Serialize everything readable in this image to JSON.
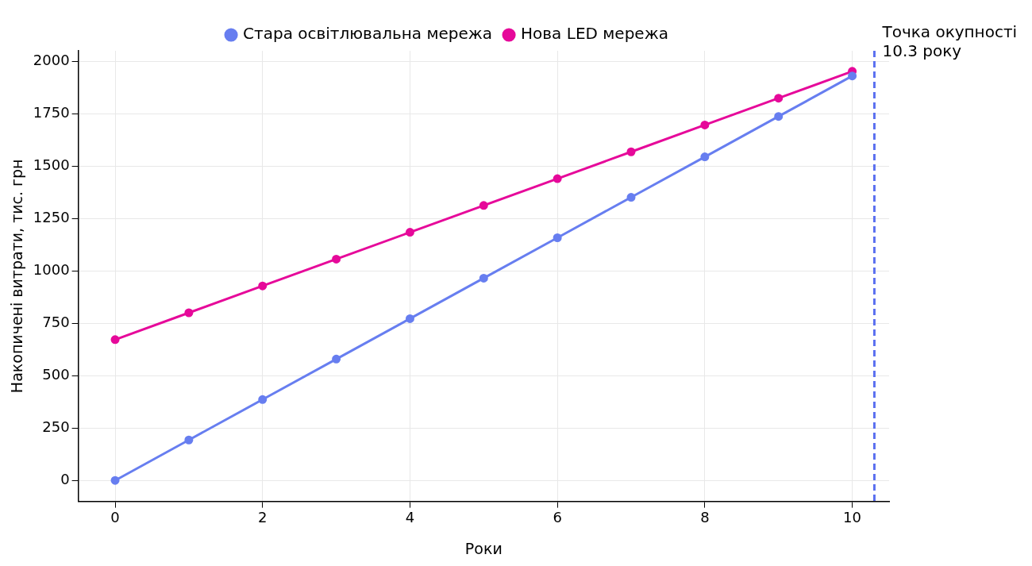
{
  "chart_data": {
    "type": "line",
    "xlabel": "Роки",
    "ylabel": "Накопичені витрати, тис. грн",
    "x": [
      0,
      1,
      2,
      3,
      4,
      5,
      6,
      7,
      8,
      9,
      10
    ],
    "series": [
      {
        "name": "Стара освітлювальна мережа",
        "color": "#677ef0",
        "values": [
          0,
          193,
          386,
          579,
          772,
          965,
          1158,
          1351,
          1544,
          1737,
          1930
        ]
      },
      {
        "name": "Нова LED мережа",
        "color": "#e6099a",
        "values": [
          672,
          800,
          928,
          1056,
          1184,
          1312,
          1440,
          1568,
          1696,
          1824,
          1952
        ]
      }
    ],
    "xlim": [
      -0.5,
      10.5
    ],
    "xticks": [
      0,
      2,
      4,
      6,
      8,
      10
    ],
    "ylim": [
      -100,
      2050
    ],
    "yticks": [
      0,
      250,
      500,
      750,
      1000,
      1250,
      1500,
      1750,
      2000
    ],
    "ref_lines": [
      {
        "axis": "x",
        "value": 10.3,
        "label": "Точка окупності\n10.3 року",
        "color": "#5a6ff0",
        "line_style": "dashed"
      }
    ],
    "grid": true,
    "legend": "top",
    "marker": "circle",
    "line_style": "solid"
  }
}
